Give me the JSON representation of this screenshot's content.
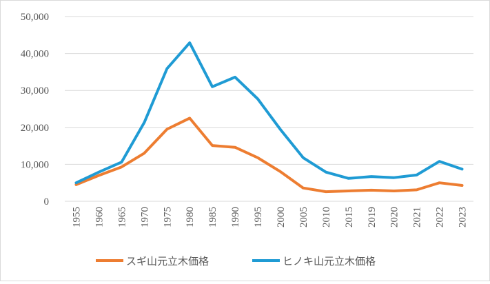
{
  "chart_data": {
    "type": "line",
    "title": "",
    "xlabel": "",
    "ylabel": "",
    "categories": [
      "1955",
      "1960",
      "1965",
      "1970",
      "1975",
      "1980",
      "1985",
      "1990",
      "1995",
      "2000",
      "2005",
      "2010",
      "2015",
      "2019",
      "2020",
      "2021",
      "2022",
      "2023"
    ],
    "ylim": [
      0,
      50000
    ],
    "yticks": [
      0,
      10000,
      20000,
      30000,
      40000,
      50000
    ],
    "ytick_labels": [
      "0",
      "10,000",
      "20,000",
      "30,000",
      "40,000",
      "50,000"
    ],
    "grid": true,
    "legend_position": "bottom",
    "series": [
      {
        "name": "スギ山元立木価格",
        "color": "#ED7D31",
        "values": [
          4500,
          7000,
          9300,
          13000,
          19500,
          22500,
          15100,
          14600,
          11800,
          8000,
          3600,
          2600,
          2800,
          3000,
          2800,
          3100,
          5000,
          4300
        ]
      },
      {
        "name": "ヒノキ山元立木価格",
        "color": "#1F9BD4",
        "values": [
          5000,
          7900,
          10600,
          21300,
          35900,
          42900,
          31000,
          33600,
          27700,
          19400,
          11800,
          7900,
          6200,
          6700,
          6400,
          7100,
          10800,
          8700
        ]
      }
    ]
  }
}
